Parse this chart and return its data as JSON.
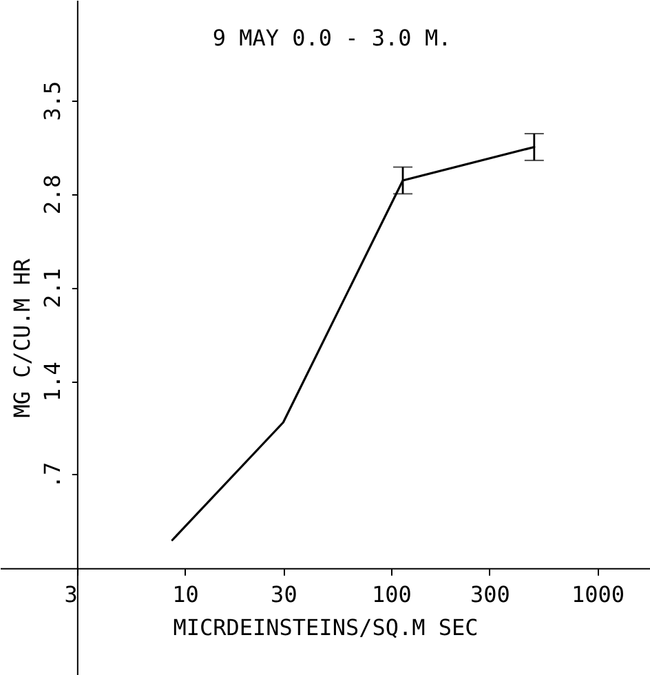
{
  "chart_data": {
    "type": "line",
    "title": "9 MAY    0.0 - 3.0 M.",
    "xlabel": "MICRDEINSTEINS/SQ.M SEC",
    "ylabel": "MG C/CU.M HR",
    "x": [
      8.7,
      30,
      114,
      494
    ],
    "series": [
      {
        "color": "#000000",
        "values": [
          0.21,
          1.09,
          2.9,
          3.15
        ],
        "errors": [
          null,
          null,
          0.1,
          0.1
        ]
      }
    ],
    "log": "x",
    "xlim": [
      1.27,
      1800
    ],
    "xticks": [
      3,
      10,
      30,
      100,
      300,
      1000
    ],
    "ylim": [
      -0.8,
      4.25
    ],
    "yticks": [
      {
        "value": 0.7,
        "label": ".7"
      },
      1.4,
      2.1,
      2.8,
      3.5
    ],
    "grid": false,
    "marker": "none",
    "line_style": "solid"
  }
}
